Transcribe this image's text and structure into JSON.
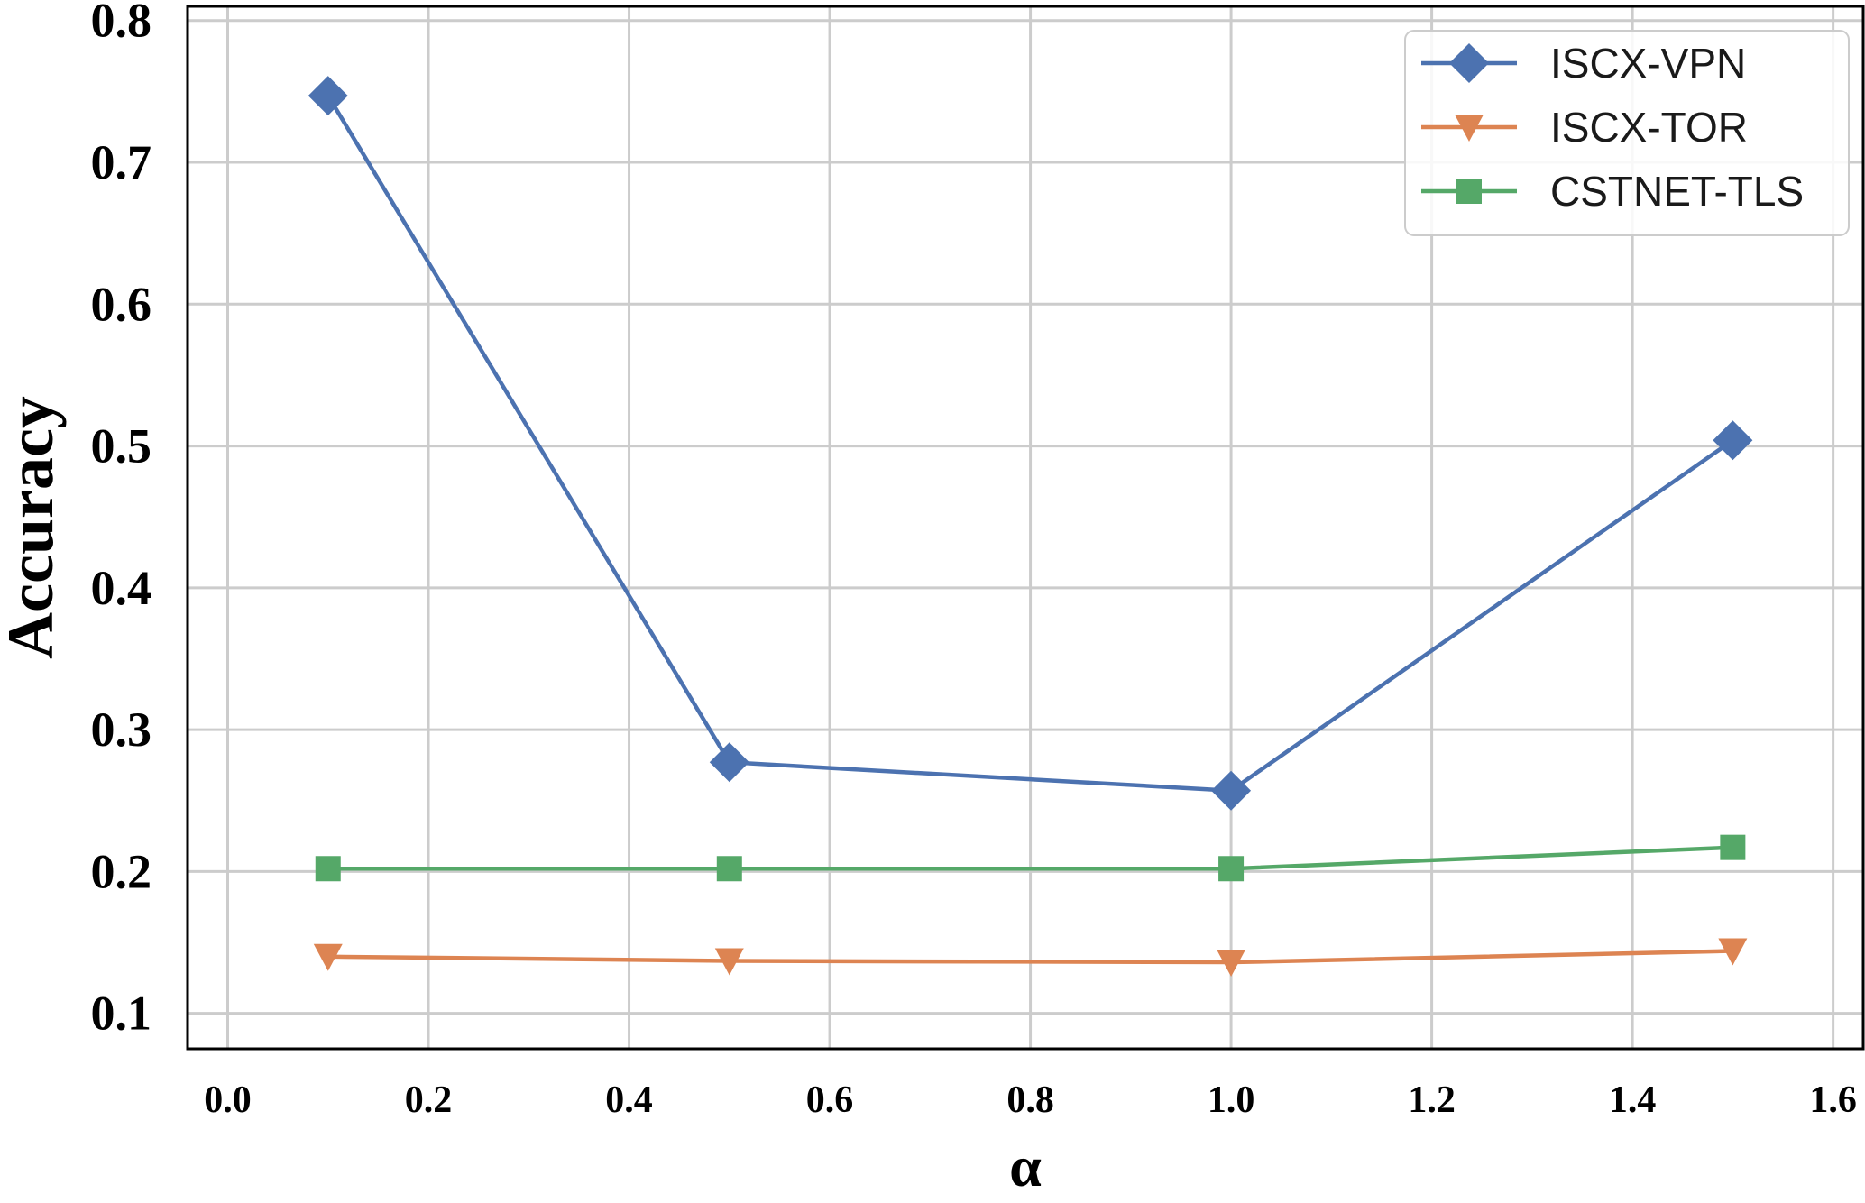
{
  "chart_data": {
    "type": "line",
    "title": "",
    "xlabel": "α",
    "ylabel": "Accuracy",
    "xlim": [
      -0.04,
      1.63
    ],
    "ylim": [
      0.075,
      0.81
    ],
    "x_ticks": [
      0.0,
      0.2,
      0.4,
      0.6,
      0.8,
      1.0,
      1.2,
      1.4,
      1.6
    ],
    "x_tick_labels": [
      "0.0",
      "0.2",
      "0.4",
      "0.6",
      "0.8",
      "1.0",
      "1.2",
      "1.4",
      "1.6"
    ],
    "y_ticks": [
      0.1,
      0.2,
      0.3,
      0.4,
      0.5,
      0.6,
      0.7,
      0.8
    ],
    "y_tick_labels": [
      "0.1",
      "0.2",
      "0.3",
      "0.4",
      "0.5",
      "0.6",
      "0.7",
      "0.8"
    ],
    "grid": true,
    "legend_position": "top-right",
    "x": [
      0.1,
      0.5,
      1.0,
      1.5
    ],
    "series": [
      {
        "name": "ISCX-VPN",
        "values": [
          0.747,
          0.277,
          0.257,
          0.504
        ],
        "color": "#4c72b0",
        "marker": "diamond"
      },
      {
        "name": "ISCX-TOR",
        "values": [
          0.14,
          0.137,
          0.136,
          0.144
        ],
        "color": "#dd8452",
        "marker": "triangle-down"
      },
      {
        "name": "CSTNET-TLS",
        "values": [
          0.202,
          0.202,
          0.202,
          0.217
        ],
        "color": "#55a868",
        "marker": "square"
      }
    ]
  }
}
